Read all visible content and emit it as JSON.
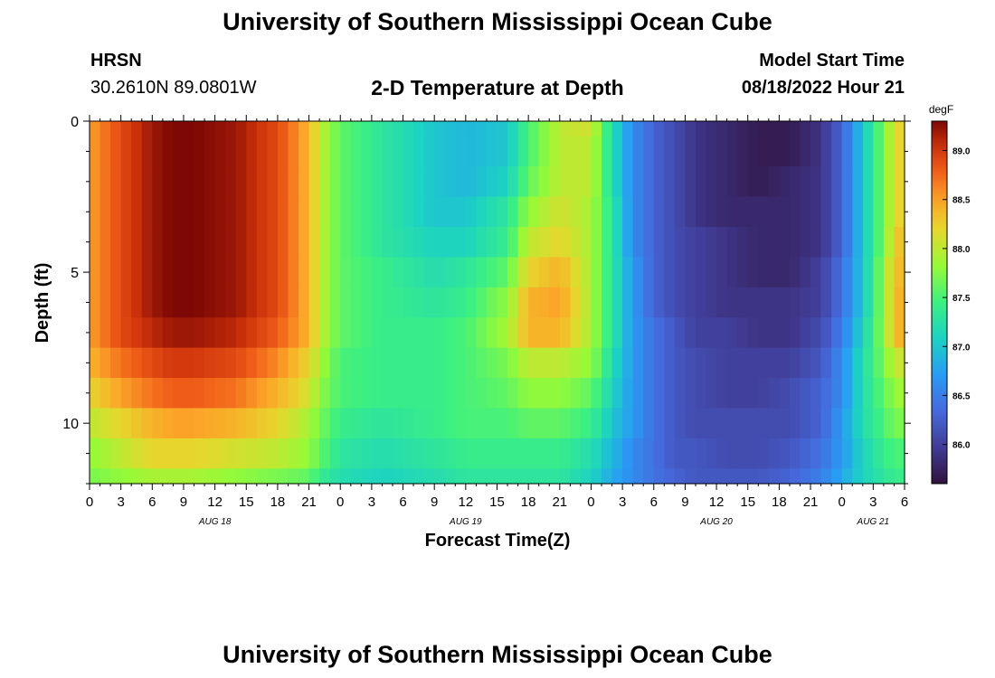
{
  "header": {
    "title": "University of Southern Mississippi Ocean Cube",
    "station_name": "HRSN",
    "station_coords": "30.2610N  89.0801W",
    "model_start_label": "Model Start Time",
    "model_start_value": "08/18/2022 Hour 21"
  },
  "footer": {
    "title": "University of Southern Mississippi Ocean Cube"
  },
  "chart_data": {
    "type": "heatmap",
    "title": "2-D Temperature at Depth",
    "xlabel": "Forecast Time(Z)",
    "ylabel": "Depth (ft)",
    "colorbar_label": "degF",
    "x_range_hours": [
      0,
      78
    ],
    "y_range_ft": [
      0,
      12
    ],
    "y_ticks": [
      "0",
      "5",
      "10"
    ],
    "y_tick_values": [
      0,
      5,
      10
    ],
    "x_tick_labels": [
      "0",
      "3",
      "6",
      "9",
      "12",
      "15",
      "18",
      "21",
      "0",
      "3",
      "6",
      "9",
      "12",
      "15",
      "18",
      "21",
      "0",
      "3",
      "6",
      "9",
      "12",
      "15",
      "18",
      "21",
      "0",
      "3",
      "6"
    ],
    "day_labels": [
      {
        "label": "AUG 18",
        "hour": 12
      },
      {
        "label": "AUG 19",
        "hour": 36
      },
      {
        "label": "AUG 20",
        "hour": 60
      },
      {
        "label": "AUG 21",
        "hour": 75
      }
    ],
    "colorbar_range": [
      85.6,
      89.3
    ],
    "colorbar_ticks": [
      "86.0",
      "86.5",
      "87.0",
      "87.5",
      "88.0",
      "88.5",
      "89.0"
    ],
    "colorbar_tick_values": [
      86.0,
      86.5,
      87.0,
      87.5,
      88.0,
      88.5,
      89.0
    ],
    "cols": 78,
    "depth_layers": [
      0,
      1,
      2,
      3,
      4,
      5,
      6,
      7,
      8,
      9,
      10,
      11,
      12
    ],
    "grid_on": false,
    "profiles": {
      "hours": [
        0,
        3,
        6,
        8,
        10,
        14,
        18,
        21,
        22,
        24,
        28,
        33,
        36,
        40,
        42,
        45,
        48,
        50,
        52,
        54,
        56,
        58,
        61,
        64,
        67,
        70,
        72,
        74,
        76,
        77,
        78
      ],
      "rows": [
        [
          88.5,
          88.9,
          89.2,
          89.3,
          89.3,
          89.2,
          88.9,
          88.4,
          88.0,
          87.6,
          87.3,
          87.0,
          86.9,
          87.0,
          87.5,
          88.0,
          88.1,
          87.2,
          86.6,
          86.3,
          86.1,
          85.9,
          85.8,
          85.7,
          85.7,
          85.9,
          86.3,
          87.0,
          87.7,
          88.1,
          88.3
        ],
        [
          88.5,
          88.9,
          89.2,
          89.3,
          89.3,
          89.2,
          88.9,
          88.4,
          88.0,
          87.6,
          87.3,
          87.0,
          86.9,
          87.0,
          87.5,
          88.0,
          88.0,
          87.2,
          86.6,
          86.3,
          86.1,
          85.9,
          85.8,
          85.7,
          85.7,
          85.9,
          86.3,
          87.0,
          87.7,
          88.1,
          88.3
        ],
        [
          88.5,
          88.9,
          89.2,
          89.3,
          89.3,
          89.2,
          88.9,
          88.4,
          88.0,
          87.6,
          87.3,
          87.0,
          86.9,
          87.1,
          87.6,
          88.0,
          88.0,
          87.2,
          86.6,
          86.3,
          86.1,
          85.9,
          85.8,
          85.7,
          85.8,
          85.9,
          86.3,
          87.0,
          87.7,
          88.1,
          88.3
        ],
        [
          88.5,
          88.9,
          89.2,
          89.3,
          89.3,
          89.2,
          88.9,
          88.4,
          88.0,
          87.6,
          87.3,
          87.0,
          87.0,
          87.3,
          87.8,
          88.1,
          87.9,
          87.3,
          86.6,
          86.3,
          86.1,
          85.9,
          85.8,
          85.8,
          85.8,
          85.9,
          86.3,
          87.0,
          87.7,
          88.1,
          88.3
        ],
        [
          88.5,
          88.9,
          89.2,
          89.3,
          89.3,
          89.2,
          88.9,
          88.4,
          88.0,
          87.6,
          87.3,
          87.1,
          87.1,
          87.4,
          88.0,
          88.2,
          87.9,
          87.3,
          86.6,
          86.3,
          86.1,
          86.0,
          85.9,
          85.8,
          85.8,
          85.9,
          86.3,
          87.0,
          87.7,
          88.2,
          88.4
        ],
        [
          88.5,
          88.9,
          89.2,
          89.3,
          89.3,
          89.2,
          88.9,
          88.4,
          88.0,
          87.6,
          87.4,
          87.2,
          87.3,
          87.6,
          88.2,
          88.4,
          87.9,
          87.3,
          86.7,
          86.3,
          86.1,
          86.0,
          85.9,
          85.8,
          85.8,
          86.0,
          86.4,
          87.0,
          87.8,
          88.3,
          88.4
        ],
        [
          88.5,
          88.9,
          89.2,
          89.3,
          89.3,
          89.2,
          88.9,
          88.4,
          88.0,
          87.6,
          87.4,
          87.3,
          87.4,
          87.8,
          88.4,
          88.5,
          87.9,
          87.3,
          86.7,
          86.3,
          86.1,
          86.0,
          85.9,
          85.9,
          85.9,
          86.0,
          86.4,
          87.0,
          87.8,
          88.3,
          88.5
        ],
        [
          88.5,
          88.9,
          89.1,
          89.2,
          89.2,
          89.1,
          88.8,
          88.4,
          88.0,
          87.6,
          87.4,
          87.4,
          87.5,
          87.9,
          88.4,
          88.4,
          87.9,
          87.3,
          86.7,
          86.4,
          86.2,
          86.0,
          86.0,
          85.9,
          85.9,
          86.1,
          86.5,
          87.1,
          87.8,
          88.3,
          88.5
        ],
        [
          88.4,
          88.7,
          88.9,
          89.0,
          89.0,
          88.9,
          88.6,
          88.2,
          87.9,
          87.5,
          87.4,
          87.4,
          87.5,
          87.7,
          88.0,
          88.0,
          87.8,
          87.2,
          86.7,
          86.4,
          86.2,
          86.1,
          86.0,
          86.0,
          86.0,
          86.2,
          86.6,
          87.2,
          87.7,
          88.0,
          88.1
        ],
        [
          88.2,
          88.5,
          88.7,
          88.8,
          88.8,
          88.7,
          88.4,
          88.1,
          87.8,
          87.5,
          87.4,
          87.4,
          87.5,
          87.6,
          87.8,
          87.8,
          87.6,
          87.1,
          86.7,
          86.4,
          86.2,
          86.1,
          86.0,
          86.0,
          86.1,
          86.3,
          86.6,
          87.2,
          87.6,
          87.8,
          87.9
        ],
        [
          88.0,
          88.2,
          88.4,
          88.5,
          88.5,
          88.4,
          88.2,
          87.9,
          87.7,
          87.4,
          87.3,
          87.4,
          87.5,
          87.5,
          87.6,
          87.6,
          87.4,
          87.0,
          86.7,
          86.4,
          86.2,
          86.1,
          86.1,
          86.1,
          86.1,
          86.3,
          86.7,
          87.2,
          87.5,
          87.7,
          87.7
        ],
        [
          87.8,
          88.0,
          88.2,
          88.2,
          88.2,
          88.1,
          88.0,
          87.8,
          87.6,
          87.3,
          87.2,
          87.3,
          87.4,
          87.4,
          87.4,
          87.4,
          87.2,
          86.9,
          86.6,
          86.4,
          86.2,
          86.2,
          86.1,
          86.1,
          86.2,
          86.4,
          86.7,
          87.1,
          87.4,
          87.5,
          87.5
        ],
        [
          87.7,
          87.8,
          87.9,
          87.9,
          87.9,
          87.8,
          87.7,
          87.6,
          87.4,
          87.2,
          87.1,
          87.2,
          87.3,
          87.3,
          87.3,
          87.3,
          87.1,
          86.8,
          86.6,
          86.4,
          86.3,
          86.2,
          86.2,
          86.2,
          86.3,
          86.5,
          86.8,
          87.1,
          87.3,
          87.4,
          87.4
        ]
      ]
    }
  }
}
